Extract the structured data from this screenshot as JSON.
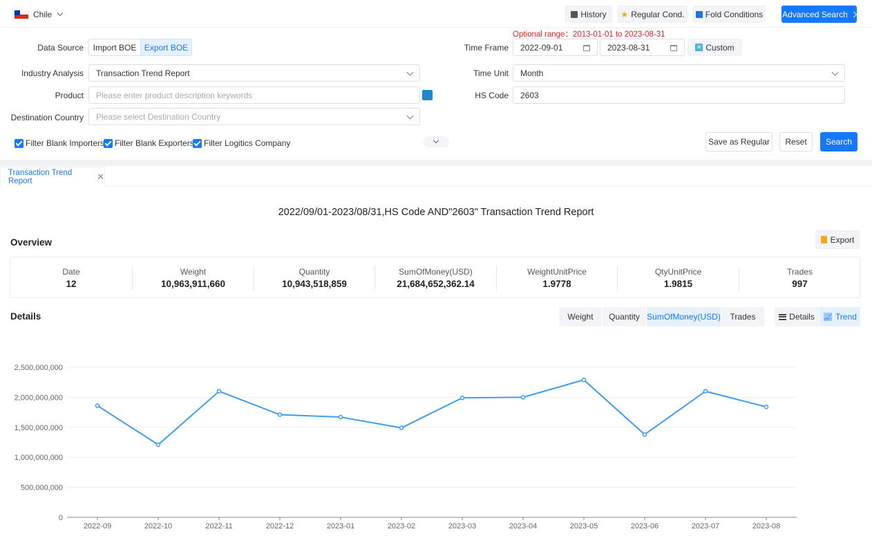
{
  "header": {
    "country": "Chile",
    "buttons": {
      "history": "History",
      "regular": "Regular Cond.",
      "fold": "Fold Conditions",
      "advanced": "Advanced Search"
    }
  },
  "form": {
    "optional_range": "Optional range：2013-01-01 to 2023-08-31",
    "data_source_label": "Data Source",
    "data_source_options": [
      "Import BOE",
      "Export BOE"
    ],
    "time_frame_label": "Time Frame",
    "date_from": "2022-09-01",
    "date_to": "2023-08-31",
    "custom_label": "Custom",
    "industry_label": "Industry Analysis",
    "industry_value": "Transaction Trend Report",
    "time_unit_label": "Time Unit",
    "time_unit_value": "Month",
    "product_label": "Product",
    "product_placeholder": "Please enter product description keywords",
    "hs_code_label": "HS Code",
    "hs_code_value": "2603",
    "destination_label": "Destination Country",
    "destination_placeholder": "Please select Destination Country",
    "filters": [
      "Filter Blank Importers",
      "Filter Blank Exporters",
      "Filter Logitics Company"
    ],
    "save_regular": "Save as Regular",
    "reset": "Reset",
    "search": "Search"
  },
  "tab": {
    "label": "Transaction Trend Report"
  },
  "report": {
    "title": "2022/09/01-2023/08/31,HS Code AND\"2603\" Transaction Trend Report",
    "overview_title": "Overview",
    "export_label": "Export",
    "overview": [
      {
        "label": "Date",
        "value": "12"
      },
      {
        "label": "Weight",
        "value": "10,963,911,660"
      },
      {
        "label": "Quantity",
        "value": "10,943,518,859"
      },
      {
        "label": "SumOfMoney(USD)",
        "value": "21,684,652,362.14"
      },
      {
        "label": "WeightUnitPrice",
        "value": "1.9778"
      },
      {
        "label": "QtyUnitPrice",
        "value": "1.9815"
      },
      {
        "label": "Trades",
        "value": "997"
      }
    ],
    "details_title": "Details",
    "metric_tabs": [
      "Weight",
      "Quantity",
      "SumOfMoney(USD)",
      "Trades"
    ],
    "view_tabs": [
      "Details",
      "Trend"
    ]
  },
  "colors": {
    "accent": "#1677ff",
    "line": "#3d9cf0",
    "alert": "#d9262a"
  },
  "chart_data": {
    "type": "line",
    "title": "",
    "xlabel": "",
    "ylabel": "",
    "categories": [
      "2022-09",
      "2022-10",
      "2022-11",
      "2022-12",
      "2023-01",
      "2023-02",
      "2023-03",
      "2023-04",
      "2023-05",
      "2023-06",
      "2023-07",
      "2023-08"
    ],
    "series": [
      {
        "name": "SumOfMoney(USD)",
        "values": [
          1860000000,
          1210000000,
          2100000000,
          1710000000,
          1670000000,
          1490000000,
          1990000000,
          2000000000,
          2290000000,
          1380000000,
          2100000000,
          1840000000
        ]
      }
    ],
    "ylim": [
      0,
      2500000000
    ],
    "yticks": [
      "0",
      "500,000,000",
      "1,000,000,000",
      "1,500,000,000",
      "2,000,000,000",
      "2,500,000,000"
    ],
    "grid": true
  }
}
